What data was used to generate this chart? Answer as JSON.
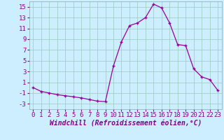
{
  "hours": [
    0,
    1,
    2,
    3,
    4,
    5,
    6,
    7,
    8,
    9,
    10,
    11,
    12,
    13,
    14,
    15,
    16,
    17,
    18,
    19,
    20,
    21,
    22,
    23
  ],
  "values": [
    0.0,
    -0.7,
    -1.0,
    -1.3,
    -1.5,
    -1.7,
    -1.9,
    -2.2,
    -2.5,
    -2.6,
    4.0,
    8.5,
    11.5,
    12.0,
    13.0,
    15.5,
    14.8,
    12.0,
    8.0,
    7.8,
    3.5,
    2.0,
    1.5,
    -0.5
  ],
  "xlim": [
    -0.5,
    23.5
  ],
  "ylim": [
    -4,
    16
  ],
  "yticks": [
    -3,
    -1,
    1,
    3,
    5,
    7,
    9,
    11,
    13,
    15
  ],
  "xticks": [
    0,
    1,
    2,
    3,
    4,
    5,
    6,
    7,
    8,
    9,
    10,
    11,
    12,
    13,
    14,
    15,
    16,
    17,
    18,
    19,
    20,
    21,
    22,
    23
  ],
  "line_color": "#990099",
  "marker": "+",
  "background_color": "#cceeff",
  "grid_color": "#99ccbb",
  "xlabel": "Windchill (Refroidissement éolien,°C)",
  "xlabel_fontsize": 7.0,
  "tick_fontsize": 6.5,
  "label_color": "#880088"
}
